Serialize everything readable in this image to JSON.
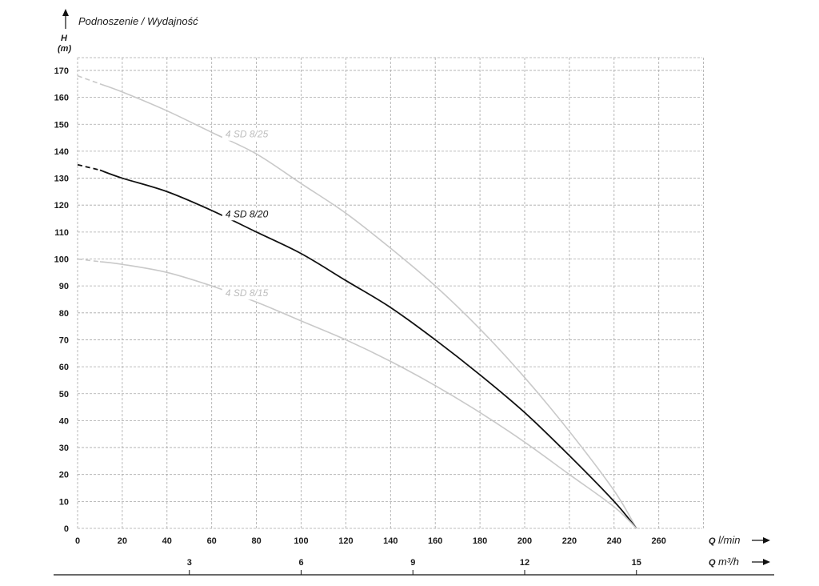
{
  "chart_data": {
    "type": "line",
    "title": "Podnoszenie / Wydajność",
    "ylabel": "H",
    "yunit": "(m)",
    "xlabel": "Q",
    "xunit": "l/min",
    "x2label": "Q",
    "x2unit": "m³/h",
    "xlim": [
      0,
      280
    ],
    "ylim": [
      0,
      175
    ],
    "x_ticks": [
      0,
      20,
      40,
      60,
      80,
      100,
      120,
      140,
      160,
      180,
      200,
      220,
      240,
      260
    ],
    "y_ticks": [
      0,
      10,
      20,
      30,
      40,
      50,
      60,
      70,
      80,
      90,
      100,
      110,
      120,
      130,
      140,
      150,
      160,
      170
    ],
    "x2_ticks": [
      3,
      6,
      9,
      12,
      15
    ],
    "grid": true,
    "series": [
      {
        "name": "4 SD 8/25",
        "color": "#c9c9c9",
        "x": [
          0,
          10,
          20,
          40,
          60,
          80,
          100,
          120,
          140,
          160,
          180,
          200,
          220,
          240,
          250
        ],
        "y": [
          168,
          165,
          162,
          155,
          147,
          139,
          128,
          117,
          104,
          90,
          74,
          56,
          36,
          14,
          0
        ]
      },
      {
        "name": "4 SD 8/20",
        "color": "#111111",
        "x": [
          0,
          10,
          20,
          40,
          60,
          80,
          100,
          120,
          140,
          160,
          180,
          200,
          220,
          240,
          250
        ],
        "y": [
          135,
          133,
          130,
          125,
          118,
          110,
          102,
          92,
          82,
          70,
          57,
          43,
          27,
          10,
          0
        ]
      },
      {
        "name": "4 SD 8/15",
        "color": "#c9c9c9",
        "x": [
          0,
          10,
          20,
          40,
          60,
          80,
          100,
          120,
          140,
          160,
          180,
          200,
          220,
          240,
          250
        ],
        "y": [
          100,
          99,
          98,
          95,
          90,
          84,
          77,
          70,
          62,
          53,
          43,
          32,
          20,
          8,
          0
        ]
      }
    ]
  }
}
